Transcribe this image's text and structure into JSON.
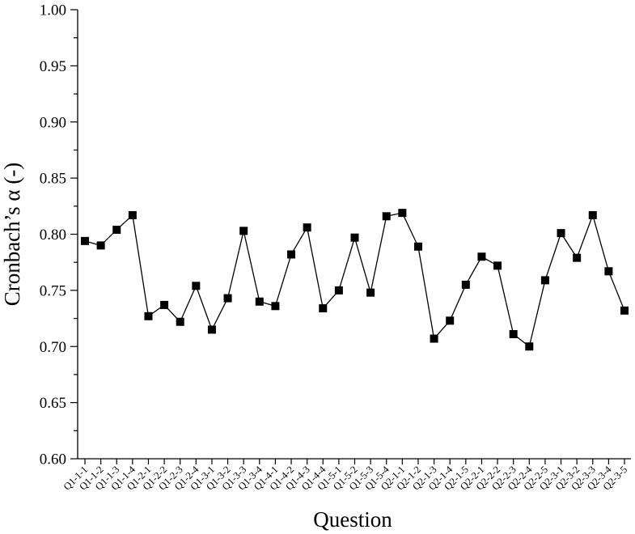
{
  "chart_data": {
    "type": "line",
    "xlabel": "Question",
    "ylabel": "Cronbach’s α (-)",
    "ylim": [
      0.6,
      1.0
    ],
    "yticks": [
      "0.60",
      "0.65",
      "0.70",
      "0.75",
      "0.80",
      "0.85",
      "0.90",
      "0.95",
      "1.00"
    ],
    "grid": false,
    "marker": "square",
    "categories": [
      "Q1-1-1",
      "Q1-1-2",
      "Q1-1-3",
      "Q1-1-4",
      "Q1-2-1",
      "Q1-2-2",
      "Q1-2-3",
      "Q1-2-4",
      "Q1-3-1",
      "Q1-3-2",
      "Q1-3-3",
      "Q1-3-4",
      "Q1-4-1",
      "Q1-4-2",
      "Q1-4-3",
      "Q1-4-4",
      "Q1-5-1",
      "Q1-5-2",
      "Q1-5-3",
      "Q1-5-4",
      "Q2-1-1",
      "Q2-1-2",
      "Q2-1-3",
      "Q2-1-4",
      "Q2-1-5",
      "Q2-2-1",
      "Q2-2-2",
      "Q2-2-3",
      "Q2-2-4",
      "Q2-2-5",
      "Q2-3-1",
      "Q2-3-2",
      "Q2-3-3",
      "Q2-3-4",
      "Q2-3-5"
    ],
    "series": [
      {
        "values": [
          0.794,
          0.79,
          0.804,
          0.817,
          0.727,
          0.737,
          0.722,
          0.754,
          0.715,
          0.743,
          0.803,
          0.74,
          0.736,
          0.782,
          0.806,
          0.734,
          0.75,
          0.797,
          0.748,
          0.816,
          0.819,
          0.789,
          0.707,
          0.723,
          0.755,
          0.78,
          0.772,
          0.711,
          0.7,
          0.759,
          0.801,
          0.779,
          0.817,
          0.767,
          0.732
        ]
      }
    ]
  }
}
